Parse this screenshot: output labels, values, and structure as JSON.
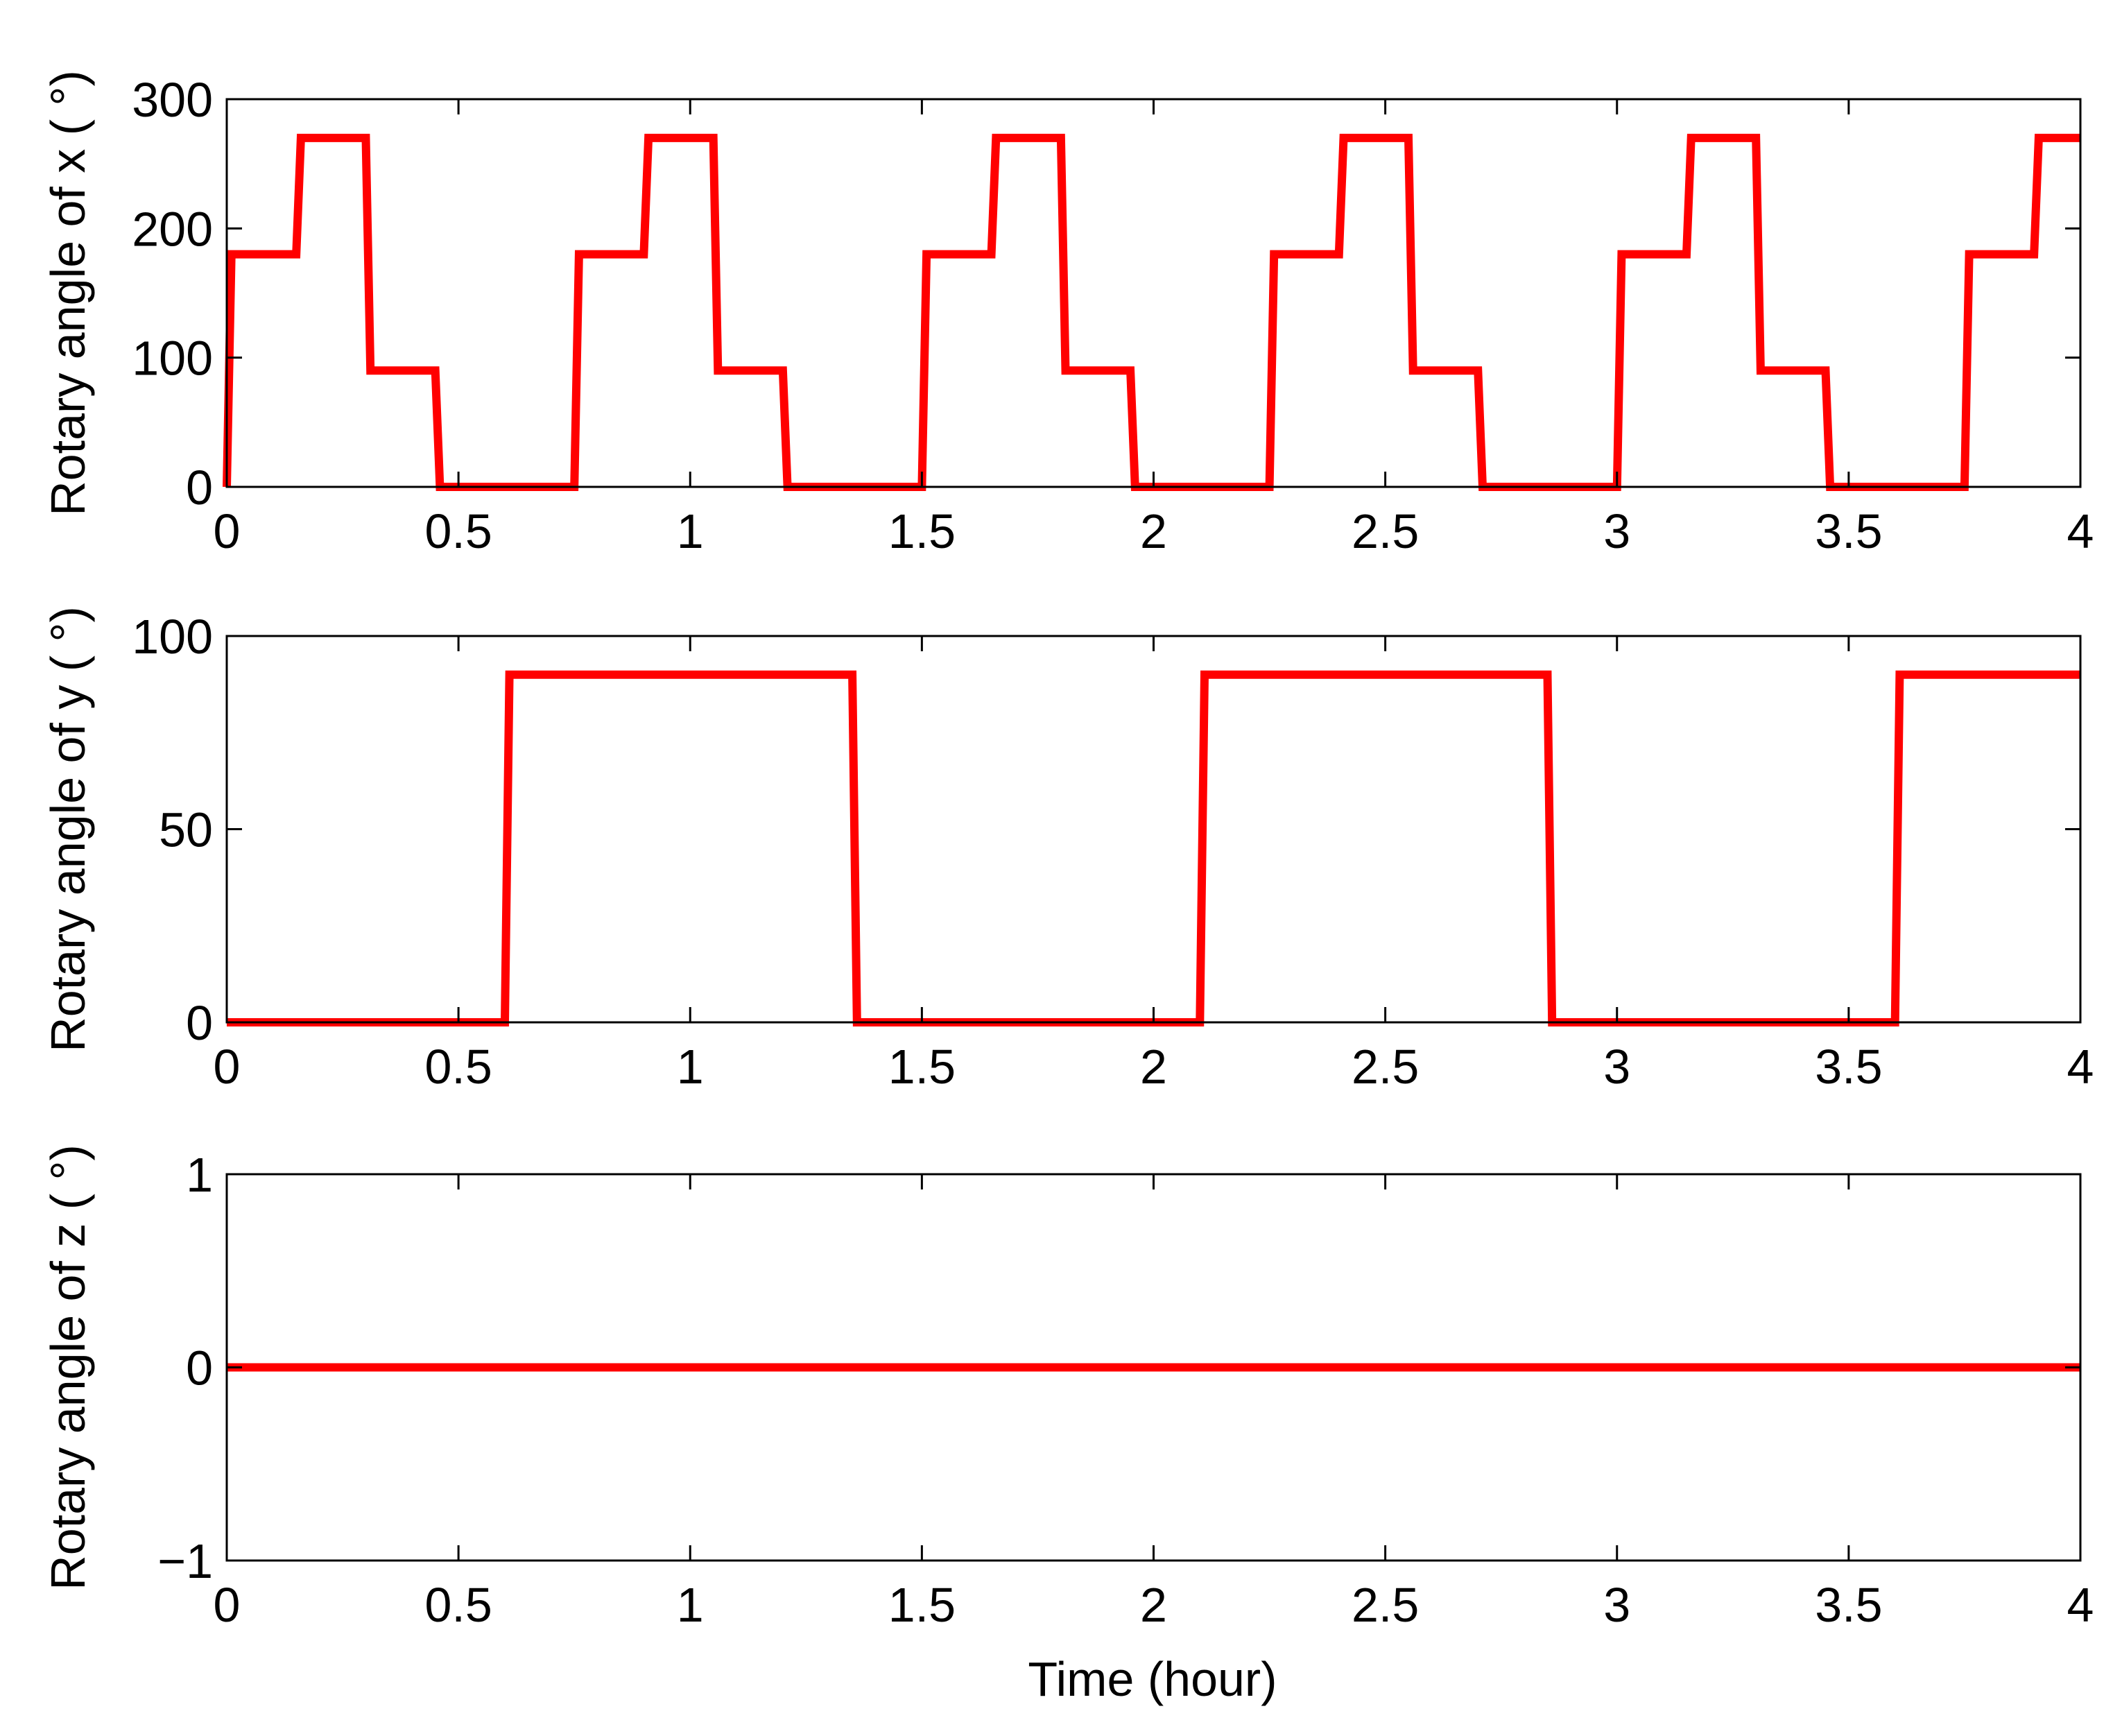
{
  "figure": {
    "xlabel": "Time (hour)"
  },
  "chart_data": [
    {
      "type": "line",
      "ylabel": "Rotary angle of x ( °)",
      "xlim": [
        0,
        4
      ],
      "ylim": [
        0,
        300
      ],
      "xticks": [
        "0",
        "0.5",
        "1",
        "1.5",
        "2",
        "2.5",
        "3",
        "3.5",
        "4"
      ],
      "yticks": [
        "0",
        "100",
        "200",
        "300"
      ],
      "grid": false,
      "line_color": "#ff0000",
      "series": [
        {
          "x": [
            0,
            0.01,
            0.15,
            0.16,
            0.3,
            0.31,
            0.45,
            0.46,
            0.75,
            0.76,
            0.9,
            0.91,
            1.05,
            1.06,
            1.2,
            1.21,
            1.5,
            1.51,
            1.65,
            1.66,
            1.8,
            1.81,
            1.95,
            1.96,
            2.25,
            2.26,
            2.4,
            2.41,
            2.55,
            2.56,
            2.7,
            2.71,
            3.0,
            3.01,
            3.15,
            3.16,
            3.3,
            3.31,
            3.45,
            3.46,
            3.75,
            3.76,
            3.9,
            3.91,
            4.0
          ],
          "y": [
            0,
            180,
            180,
            270,
            270,
            90,
            90,
            0,
            0,
            180,
            180,
            270,
            270,
            90,
            90,
            0,
            0,
            180,
            180,
            270,
            270,
            90,
            90,
            0,
            0,
            180,
            180,
            270,
            270,
            90,
            90,
            0,
            0,
            180,
            180,
            270,
            270,
            90,
            90,
            0,
            0,
            180,
            180,
            270,
            270
          ]
        }
      ]
    },
    {
      "type": "line",
      "ylabel": "Rotary angle of y ( °)",
      "xlim": [
        0,
        4
      ],
      "ylim": [
        0,
        100
      ],
      "xticks": [
        "0",
        "0.5",
        "1",
        "1.5",
        "2",
        "2.5",
        "3",
        "3.5",
        "4"
      ],
      "yticks": [
        "0",
        "50",
        "100"
      ],
      "grid": false,
      "line_color": "#ff0000",
      "series": [
        {
          "x": [
            0,
            0.6,
            0.61,
            1.35,
            1.36,
            2.1,
            2.11,
            2.85,
            2.86,
            3.6,
            3.61,
            4.0
          ],
          "y": [
            0,
            0,
            90,
            90,
            0,
            0,
            90,
            90,
            0,
            0,
            90,
            90
          ]
        }
      ]
    },
    {
      "type": "line",
      "ylabel": "Rotary angle of z ( °)",
      "xlim": [
        0,
        4
      ],
      "ylim": [
        -1,
        1
      ],
      "xticks": [
        "0",
        "0.5",
        "1",
        "1.5",
        "2",
        "2.5",
        "3",
        "3.5",
        "4"
      ],
      "yticks": [
        "−1",
        "0",
        "1"
      ],
      "grid": false,
      "line_color": "#ff0000",
      "series": [
        {
          "x": [
            0,
            4
          ],
          "y": [
            0,
            0
          ]
        }
      ]
    }
  ]
}
